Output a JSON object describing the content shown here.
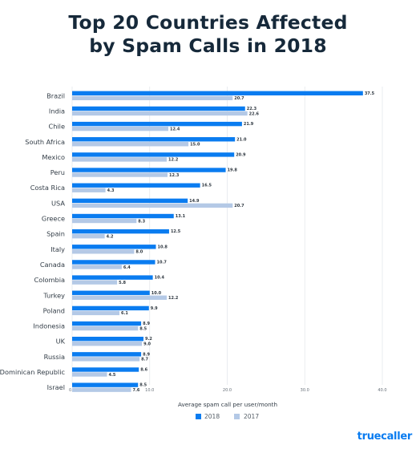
{
  "title_lines": [
    "Top 20 Countries Affected",
    "by Spam Calls in 2018"
  ],
  "logo_text": "truecaller",
  "chart_data": {
    "type": "bar",
    "orientation": "horizontal",
    "title": "Top 20 Countries Affected by Spam Calls in 2018",
    "xlabel": "Average spam call per user/month",
    "ylabel": "",
    "xlim": [
      0,
      40
    ],
    "x_ticks": [
      "0.0",
      "10.0",
      "20.0",
      "30.0",
      "40.0"
    ],
    "grid": true,
    "legend_position": "bottom",
    "categories": [
      "Brazil",
      "India",
      "Chile",
      "South Africa",
      "Mexico",
      "Peru",
      "Costa Rica",
      "USA",
      "Greece",
      "Spain",
      "Italy",
      "Canada",
      "Colombia",
      "Turkey",
      "Poland",
      "Indonesia",
      "UK",
      "Russia",
      "Dominican Republic",
      "Israel"
    ],
    "series": [
      {
        "name": "2018",
        "color": "#0a7cf0",
        "values": [
          37.5,
          22.3,
          21.9,
          21.0,
          20.9,
          19.8,
          16.5,
          14.9,
          13.1,
          12.5,
          10.8,
          10.7,
          10.4,
          10.0,
          9.9,
          8.9,
          9.2,
          8.9,
          8.6,
          8.5
        ],
        "labels": [
          "37.5",
          "22.3",
          "21.9",
          "21.0",
          "20.9",
          "19.8",
          "16.5",
          "14.9",
          "13.1",
          "12.5",
          "10.8",
          "10.7",
          "10.4",
          "10.0",
          "9.9",
          "8.9",
          "9.2",
          "8.9",
          "8.6",
          "8.5"
        ]
      },
      {
        "name": "2017",
        "color": "#b4c9e6",
        "values": [
          20.7,
          22.6,
          12.4,
          15.0,
          12.2,
          12.3,
          4.3,
          20.7,
          8.3,
          4.2,
          8.0,
          6.4,
          5.8,
          12.2,
          6.1,
          8.5,
          9.0,
          8.7,
          4.5,
          7.6
        ],
        "labels": [
          "20.7",
          "22.6",
          "12.4",
          "15.0",
          "12.2",
          "12.3",
          "4.3",
          "20.7",
          "8.3",
          "4.2",
          "8.0",
          "6.4",
          "5.8",
          "12.2",
          "6.1",
          "8.5",
          "9.0",
          "8.7",
          "4.5",
          "7.6"
        ]
      }
    ]
  }
}
